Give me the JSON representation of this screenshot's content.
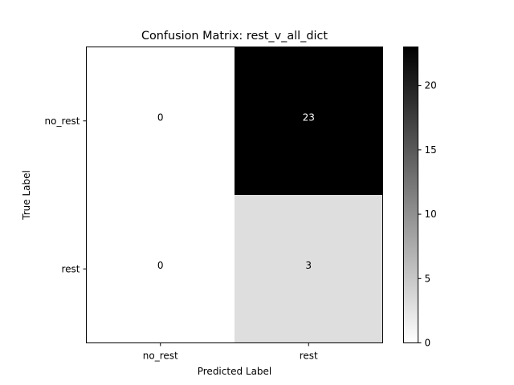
{
  "chart_data": {
    "type": "heatmap",
    "title": "Confusion Matrix: rest_v_all_dict",
    "xlabel": "Predicted Label",
    "ylabel": "True Label",
    "x_categories": [
      "no_rest",
      "rest"
    ],
    "y_categories": [
      "no_rest",
      "rest"
    ],
    "values": [
      [
        0,
        23
      ],
      [
        0,
        3
      ]
    ],
    "colormap": "Greys",
    "vmin": 0,
    "vmax": 23,
    "colorbar_ticks": [
      0,
      5,
      10,
      15,
      20
    ],
    "grid": false,
    "legend": "colorbar-right"
  },
  "colors": {
    "low": "#ffffff",
    "high": "#000000",
    "axis": "#000000",
    "text_on_dark": "#ffffff",
    "text_on_light": "#000000"
  }
}
